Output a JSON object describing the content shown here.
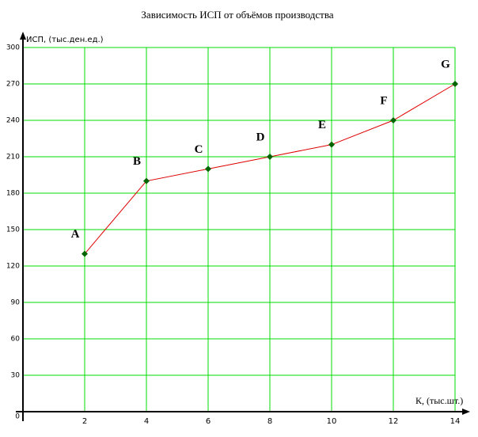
{
  "chart_data": {
    "type": "line",
    "title": "Зависимость ИСП от объёмов производства",
    "title_color": "#e00000",
    "y_label": "ИСП, (тыс.ден.ед.)",
    "x_label": "К, (тыс.шт.)",
    "x": [
      2,
      4,
      6,
      8,
      10,
      12,
      14
    ],
    "point_labels": [
      "A",
      "B",
      "C",
      "D",
      "E",
      "F",
      "G"
    ],
    "series": [
      {
        "color": "#e00000",
        "marker_color": "#006400",
        "values": [
          130,
          190,
          200,
          210,
          220,
          240,
          270
        ]
      }
    ],
    "xlim": [
      0,
      14
    ],
    "xticks": [
      2,
      4,
      6,
      8,
      10,
      12,
      14
    ],
    "ylim": [
      0,
      300
    ],
    "yticks": [
      0,
      30,
      60,
      90,
      120,
      150,
      180,
      210,
      240,
      270,
      300
    ],
    "grid": true,
    "grid_color": "#00dd00"
  }
}
